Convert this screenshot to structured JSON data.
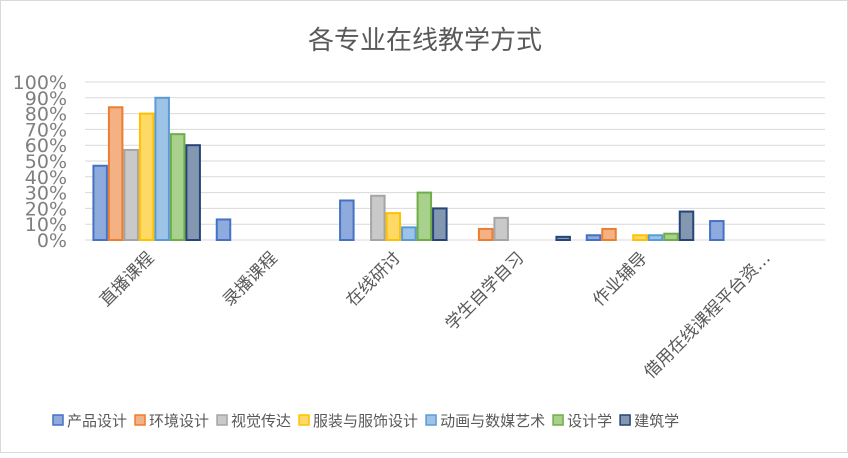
{
  "chart_data": {
    "type": "bar",
    "title": "各专业在线教学方式",
    "xlabel": "",
    "ylabel": "",
    "ylim": [
      0,
      100
    ],
    "yticks": [
      "0%",
      "10%",
      "20%",
      "30%",
      "40%",
      "50%",
      "60%",
      "70%",
      "80%",
      "90%",
      "100%"
    ],
    "grid": true,
    "legend_position": "bottom",
    "categories": [
      "直播课程",
      "录播课程",
      "在线研讨",
      "学生自学自习",
      "作业辅导",
      "借用在线课程平台资…"
    ],
    "series": [
      {
        "name": "产品设计",
        "color": "#4472c4",
        "fill": "#8faadc",
        "values": [
          47,
          13,
          25,
          0,
          3,
          12
        ]
      },
      {
        "name": "环境设计",
        "color": "#ed7d31",
        "fill": "#f4b183",
        "values": [
          84,
          0,
          0,
          7,
          7,
          0
        ]
      },
      {
        "name": "视觉传达",
        "color": "#a5a5a5",
        "fill": "#c9c9c9",
        "values": [
          57,
          0,
          28,
          14,
          0,
          0
        ]
      },
      {
        "name": "服装与服饰设计",
        "color": "#ffc000",
        "fill": "#ffd966",
        "values": [
          80,
          0,
          17,
          0,
          3,
          0
        ]
      },
      {
        "name": "动画与数媒艺术",
        "color": "#5b9bd5",
        "fill": "#9dc3e6",
        "values": [
          90,
          0,
          8,
          0,
          3,
          0
        ]
      },
      {
        "name": "设计学",
        "color": "#70ad47",
        "fill": "#a9d18e",
        "values": [
          67,
          0,
          30,
          0,
          4,
          0
        ]
      },
      {
        "name": "建筑学",
        "color": "#264478",
        "fill": "#8497b0",
        "values": [
          60,
          0,
          20,
          2,
          18,
          0
        ]
      }
    ]
  }
}
